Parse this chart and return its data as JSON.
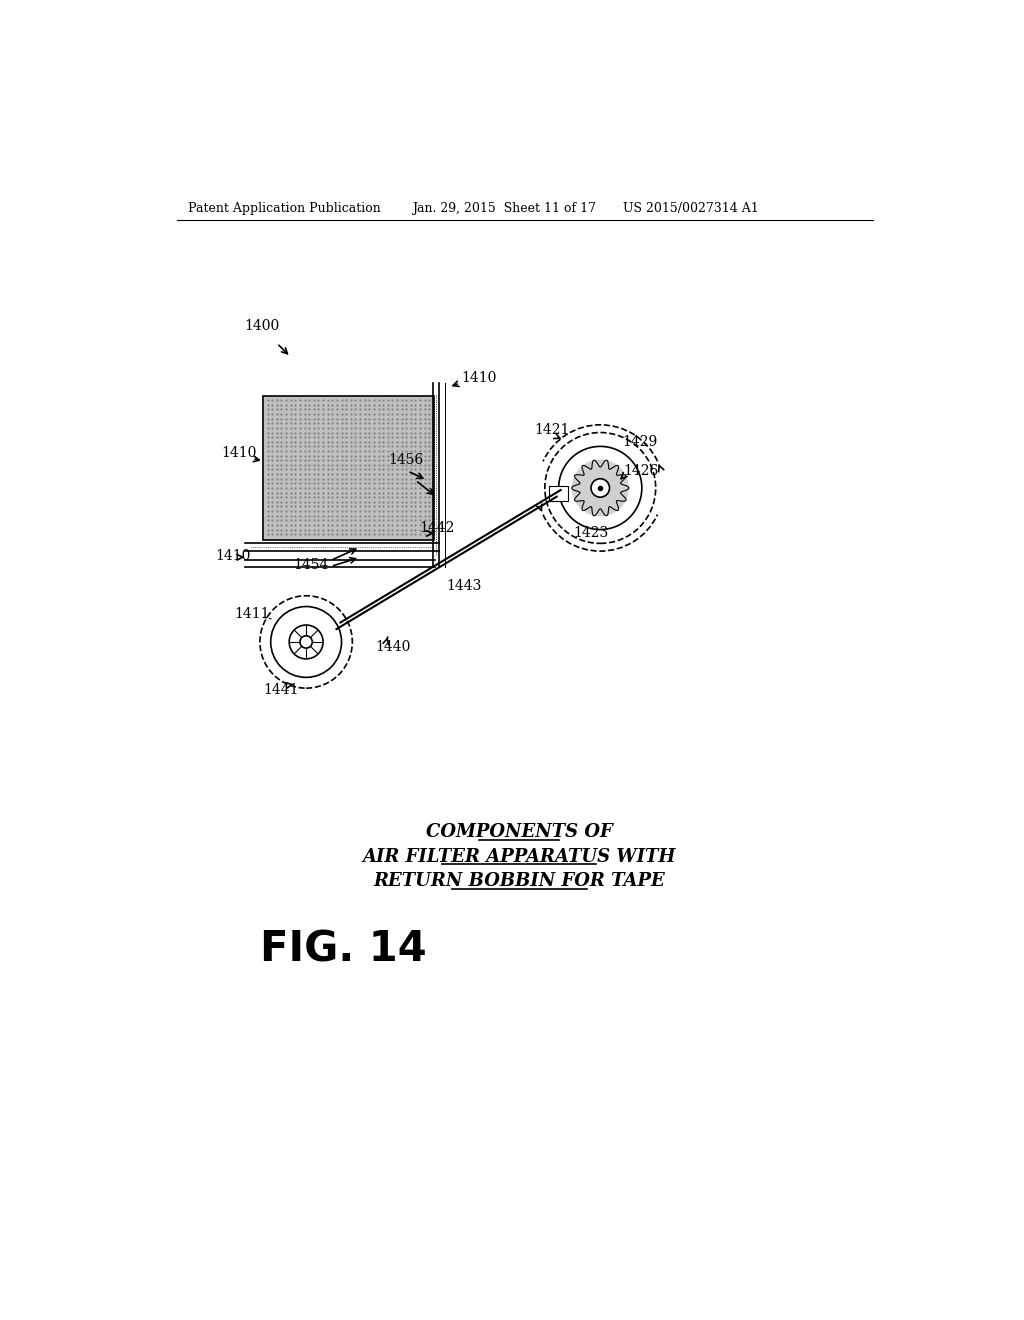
{
  "header_left": "Patent Application Publication",
  "header_mid": "Jan. 29, 2015  Sheet 11 of 17",
  "header_right": "US 2015/0027314 A1",
  "label_1400": "1400",
  "label_1410_top": "1410",
  "label_1410_left": "1410",
  "label_1410_bottom": "1410",
  "label_1411": "1411",
  "label_1421": "1421",
  "label_1423": "1423",
  "label_1426": "1426",
  "label_1429": "1429",
  "label_1440": "1440",
  "label_1441": "1441",
  "label_1442": "1442",
  "label_1443": "1443",
  "label_1454": "1454",
  "label_1456": "1456",
  "caption_line1": "COMPONENTS OF",
  "caption_line2": "AIR FILTER APPARATUS WITH",
  "caption_line3": "RETURN BOBBIN FOR TAPE",
  "fig_label": "FIG. 14",
  "bg_color": "#ffffff",
  "line_color": "#000000",
  "filter_fill": "#c0c0c0"
}
